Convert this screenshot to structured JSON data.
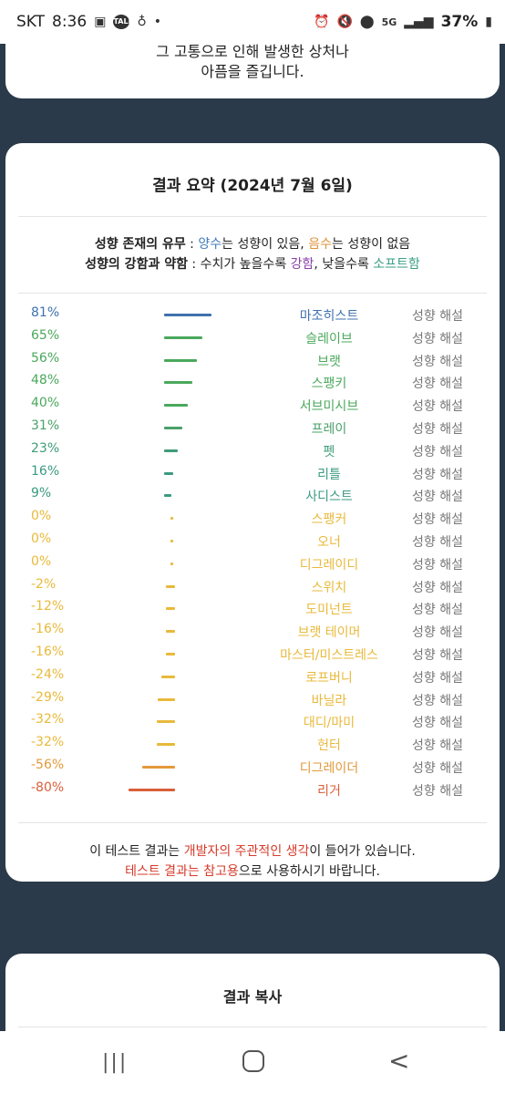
{
  "status": {
    "carrier": "SKT",
    "time": "8:36",
    "talk_icon_text": "TALK",
    "battery": "37%",
    "network": "5G"
  },
  "top_card": {
    "line1": "그 고통으로 인해 발생한 상처나",
    "line2": "아픔을 즐깁니다."
  },
  "summary": {
    "title": "결과 요약 (2024년 7월 6일)",
    "legend1": {
      "label": "성향 존재의 유무",
      "sep": " : ",
      "pos": "양수",
      "mid": "는 성향이 있음, ",
      "neg": "음수",
      "tail": "는 성향이 없음"
    },
    "legend2": {
      "label": "성향의 강함과 약함",
      "sep": " : 수치가 높을수록 ",
      "strong": "강함",
      "mid": ", 낮을수록 ",
      "soft": "소프트함"
    },
    "explain_label": "성향 해설",
    "rows": [
      {
        "pct": "81%",
        "value": 81,
        "name": "마조히스트",
        "color": "#3f72ad"
      },
      {
        "pct": "65%",
        "value": 65,
        "name": "슬레이브",
        "color": "#4aa85c"
      },
      {
        "pct": "56%",
        "value": 56,
        "name": "브랫",
        "color": "#4aa85c"
      },
      {
        "pct": "48%",
        "value": 48,
        "name": "스팽키",
        "color": "#4aa85c"
      },
      {
        "pct": "40%",
        "value": 40,
        "name": "서브미시브",
        "color": "#4aa85c"
      },
      {
        "pct": "31%",
        "value": 31,
        "name": "프레이",
        "color": "#4aa06a"
      },
      {
        "pct": "23%",
        "value": 23,
        "name": "펫",
        "color": "#3f9c78"
      },
      {
        "pct": "16%",
        "value": 16,
        "name": "리틀",
        "color": "#3a9a80"
      },
      {
        "pct": "9%",
        "value": 9,
        "name": "사디스트",
        "color": "#3a9a80"
      },
      {
        "pct": "0%",
        "value": 0,
        "name": "스팽커",
        "color": "#e8b93a"
      },
      {
        "pct": "0%",
        "value": 0,
        "name": "오너",
        "color": "#e8b93a"
      },
      {
        "pct": "0%",
        "value": 0,
        "name": "디그레이디",
        "color": "#e8b93a"
      },
      {
        "pct": "-2%",
        "value": -2,
        "name": "스위치",
        "color": "#e8b93a"
      },
      {
        "pct": "-12%",
        "value": -12,
        "name": "도미넌트",
        "color": "#e8b93a"
      },
      {
        "pct": "-16%",
        "value": -16,
        "name": "브랫 테이머",
        "color": "#e8b93a"
      },
      {
        "pct": "-16%",
        "value": -16,
        "name": "마스터/미스트레스",
        "color": "#e8b93a"
      },
      {
        "pct": "-24%",
        "value": -24,
        "name": "로프버니",
        "color": "#e8b93a"
      },
      {
        "pct": "-29%",
        "value": -29,
        "name": "바닐라",
        "color": "#e8b93a"
      },
      {
        "pct": "-32%",
        "value": -32,
        "name": "대디/마미",
        "color": "#e8b93a"
      },
      {
        "pct": "-32%",
        "value": -32,
        "name": "헌터",
        "color": "#e8b93a"
      },
      {
        "pct": "-56%",
        "value": -56,
        "name": "디그레이더",
        "color": "#e39a3a"
      },
      {
        "pct": "-80%",
        "value": -80,
        "name": "리거",
        "color": "#d9603a"
      }
    ],
    "footer": {
      "l1_pre": "이 테스트 결과는 ",
      "l1_red": "개발자의 주관적인 생각",
      "l1_post": "이 들어가 있습니다.",
      "l2_red": "테스트 결과는 참고용",
      "l2_post": "으로 사용하시기 바랍니다."
    }
  },
  "copy_card": {
    "title": "결과 복사"
  }
}
